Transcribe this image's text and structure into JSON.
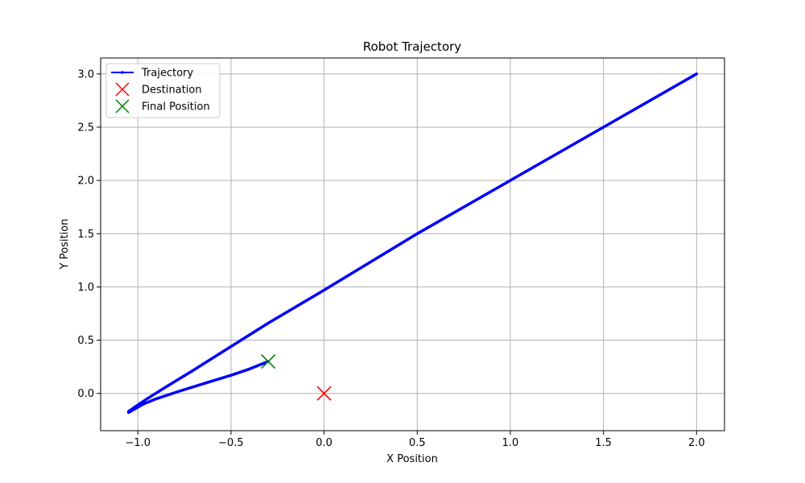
{
  "chart_data": {
    "type": "line",
    "title": "Robot Trajectory",
    "xlabel": "X Position",
    "ylabel": "Y Position",
    "xlim": [
      -1.2,
      2.15
    ],
    "ylim": [
      -0.35,
      3.15
    ],
    "xticks": [
      -1.0,
      -0.5,
      0.0,
      0.5,
      1.0,
      1.5,
      2.0
    ],
    "xtick_labels": [
      "−1.0",
      "−0.5",
      "0.0",
      "0.5",
      "1.0",
      "1.5",
      "2.0"
    ],
    "yticks": [
      0.0,
      0.5,
      1.0,
      1.5,
      2.0,
      2.5,
      3.0
    ],
    "ytick_labels": [
      "0.0",
      "0.5",
      "1.0",
      "1.5",
      "2.0",
      "2.5",
      "3.0"
    ],
    "grid": true,
    "legend_position": "top-left",
    "series": [
      {
        "name": "Trajectory",
        "kind": "line",
        "color": "#0000ff",
        "x": [
          2.0,
          1.5,
          1.0,
          0.5,
          0.0,
          -0.3,
          -0.5,
          -0.7,
          -0.85,
          -0.95,
          -1.01,
          -1.05,
          -1.05,
          -1.02,
          -0.97,
          -0.9,
          -0.78,
          -0.65,
          -0.5,
          -0.4,
          -0.3
        ],
        "y": [
          3.0,
          2.5,
          2.0,
          1.5,
          0.97,
          0.66,
          0.44,
          0.22,
          0.06,
          -0.05,
          -0.12,
          -0.17,
          -0.18,
          -0.15,
          -0.1,
          -0.05,
          0.02,
          0.09,
          0.17,
          0.23,
          0.3
        ]
      },
      {
        "name": "Destination",
        "kind": "marker",
        "color": "#ff0000",
        "x": [
          0.0
        ],
        "y": [
          0.0
        ]
      },
      {
        "name": "Final Position",
        "kind": "marker",
        "color": "#008000",
        "x": [
          -0.3
        ],
        "y": [
          0.3
        ]
      }
    ]
  }
}
